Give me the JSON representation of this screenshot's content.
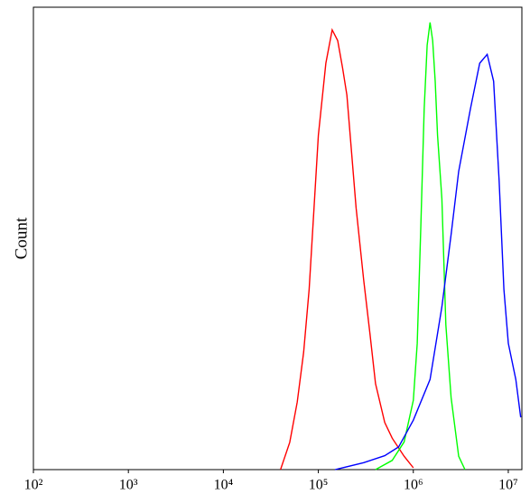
{
  "chart_data": {
    "type": "line",
    "ylabel": "Count",
    "xscale": "log",
    "xlim": [
      100,
      13900000
    ],
    "ylim": [
      0,
      100
    ],
    "xticks": [
      {
        "value": 100,
        "label": "10²"
      },
      {
        "value": 1000,
        "label": "10³"
      },
      {
        "value": 10000,
        "label": "10⁴"
      },
      {
        "value": 100000,
        "label": "10⁵"
      },
      {
        "value": 1000000,
        "label": "10⁶"
      },
      {
        "value": 10000000,
        "label": "10⁷"
      }
    ],
    "series": [
      {
        "color": "#ff0000",
        "x": [
          40000,
          50000,
          60000,
          70000,
          80000,
          90000,
          100000,
          120000,
          140000,
          160000,
          180000,
          200000,
          250000,
          300000,
          350000,
          400000,
          500000,
          600000,
          800000,
          1000000
        ],
        "values": [
          0,
          5.9,
          14.6,
          25.4,
          39,
          56.6,
          72.3,
          87.9,
          95.1,
          92.8,
          86.9,
          81,
          56.6,
          41,
          29.3,
          18.6,
          10.2,
          6.8,
          2.9,
          0.4
        ]
      },
      {
        "color": "#00ff00",
        "x": [
          400000,
          600000,
          800000,
          1000000,
          1100000,
          1200000,
          1300000,
          1400000,
          1500000,
          1600000,
          1700000,
          1800000,
          2000000,
          2200000,
          2500000,
          3000000,
          3500000
        ],
        "values": [
          0,
          2,
          6,
          15,
          27.3,
          52.7,
          78,
          91.8,
          96.7,
          92.8,
          84,
          72.3,
          58.6,
          31.3,
          15.6,
          2.9,
          0
        ]
      },
      {
        "color": "#0000ff",
        "x": [
          150000,
          300000,
          500000,
          700000,
          1000000,
          1500000,
          2000000,
          2500000,
          3000000,
          4000000,
          5000000,
          6000000,
          7000000,
          8000000,
          9000000,
          10000000,
          12000000,
          13500000
        ],
        "values": [
          0,
          1.5,
          3,
          4.9,
          10.7,
          19.5,
          35.2,
          50.8,
          64.5,
          78.1,
          87.9,
          89.8,
          84,
          62.5,
          39,
          27.3,
          19.5,
          11.3
        ]
      }
    ]
  }
}
